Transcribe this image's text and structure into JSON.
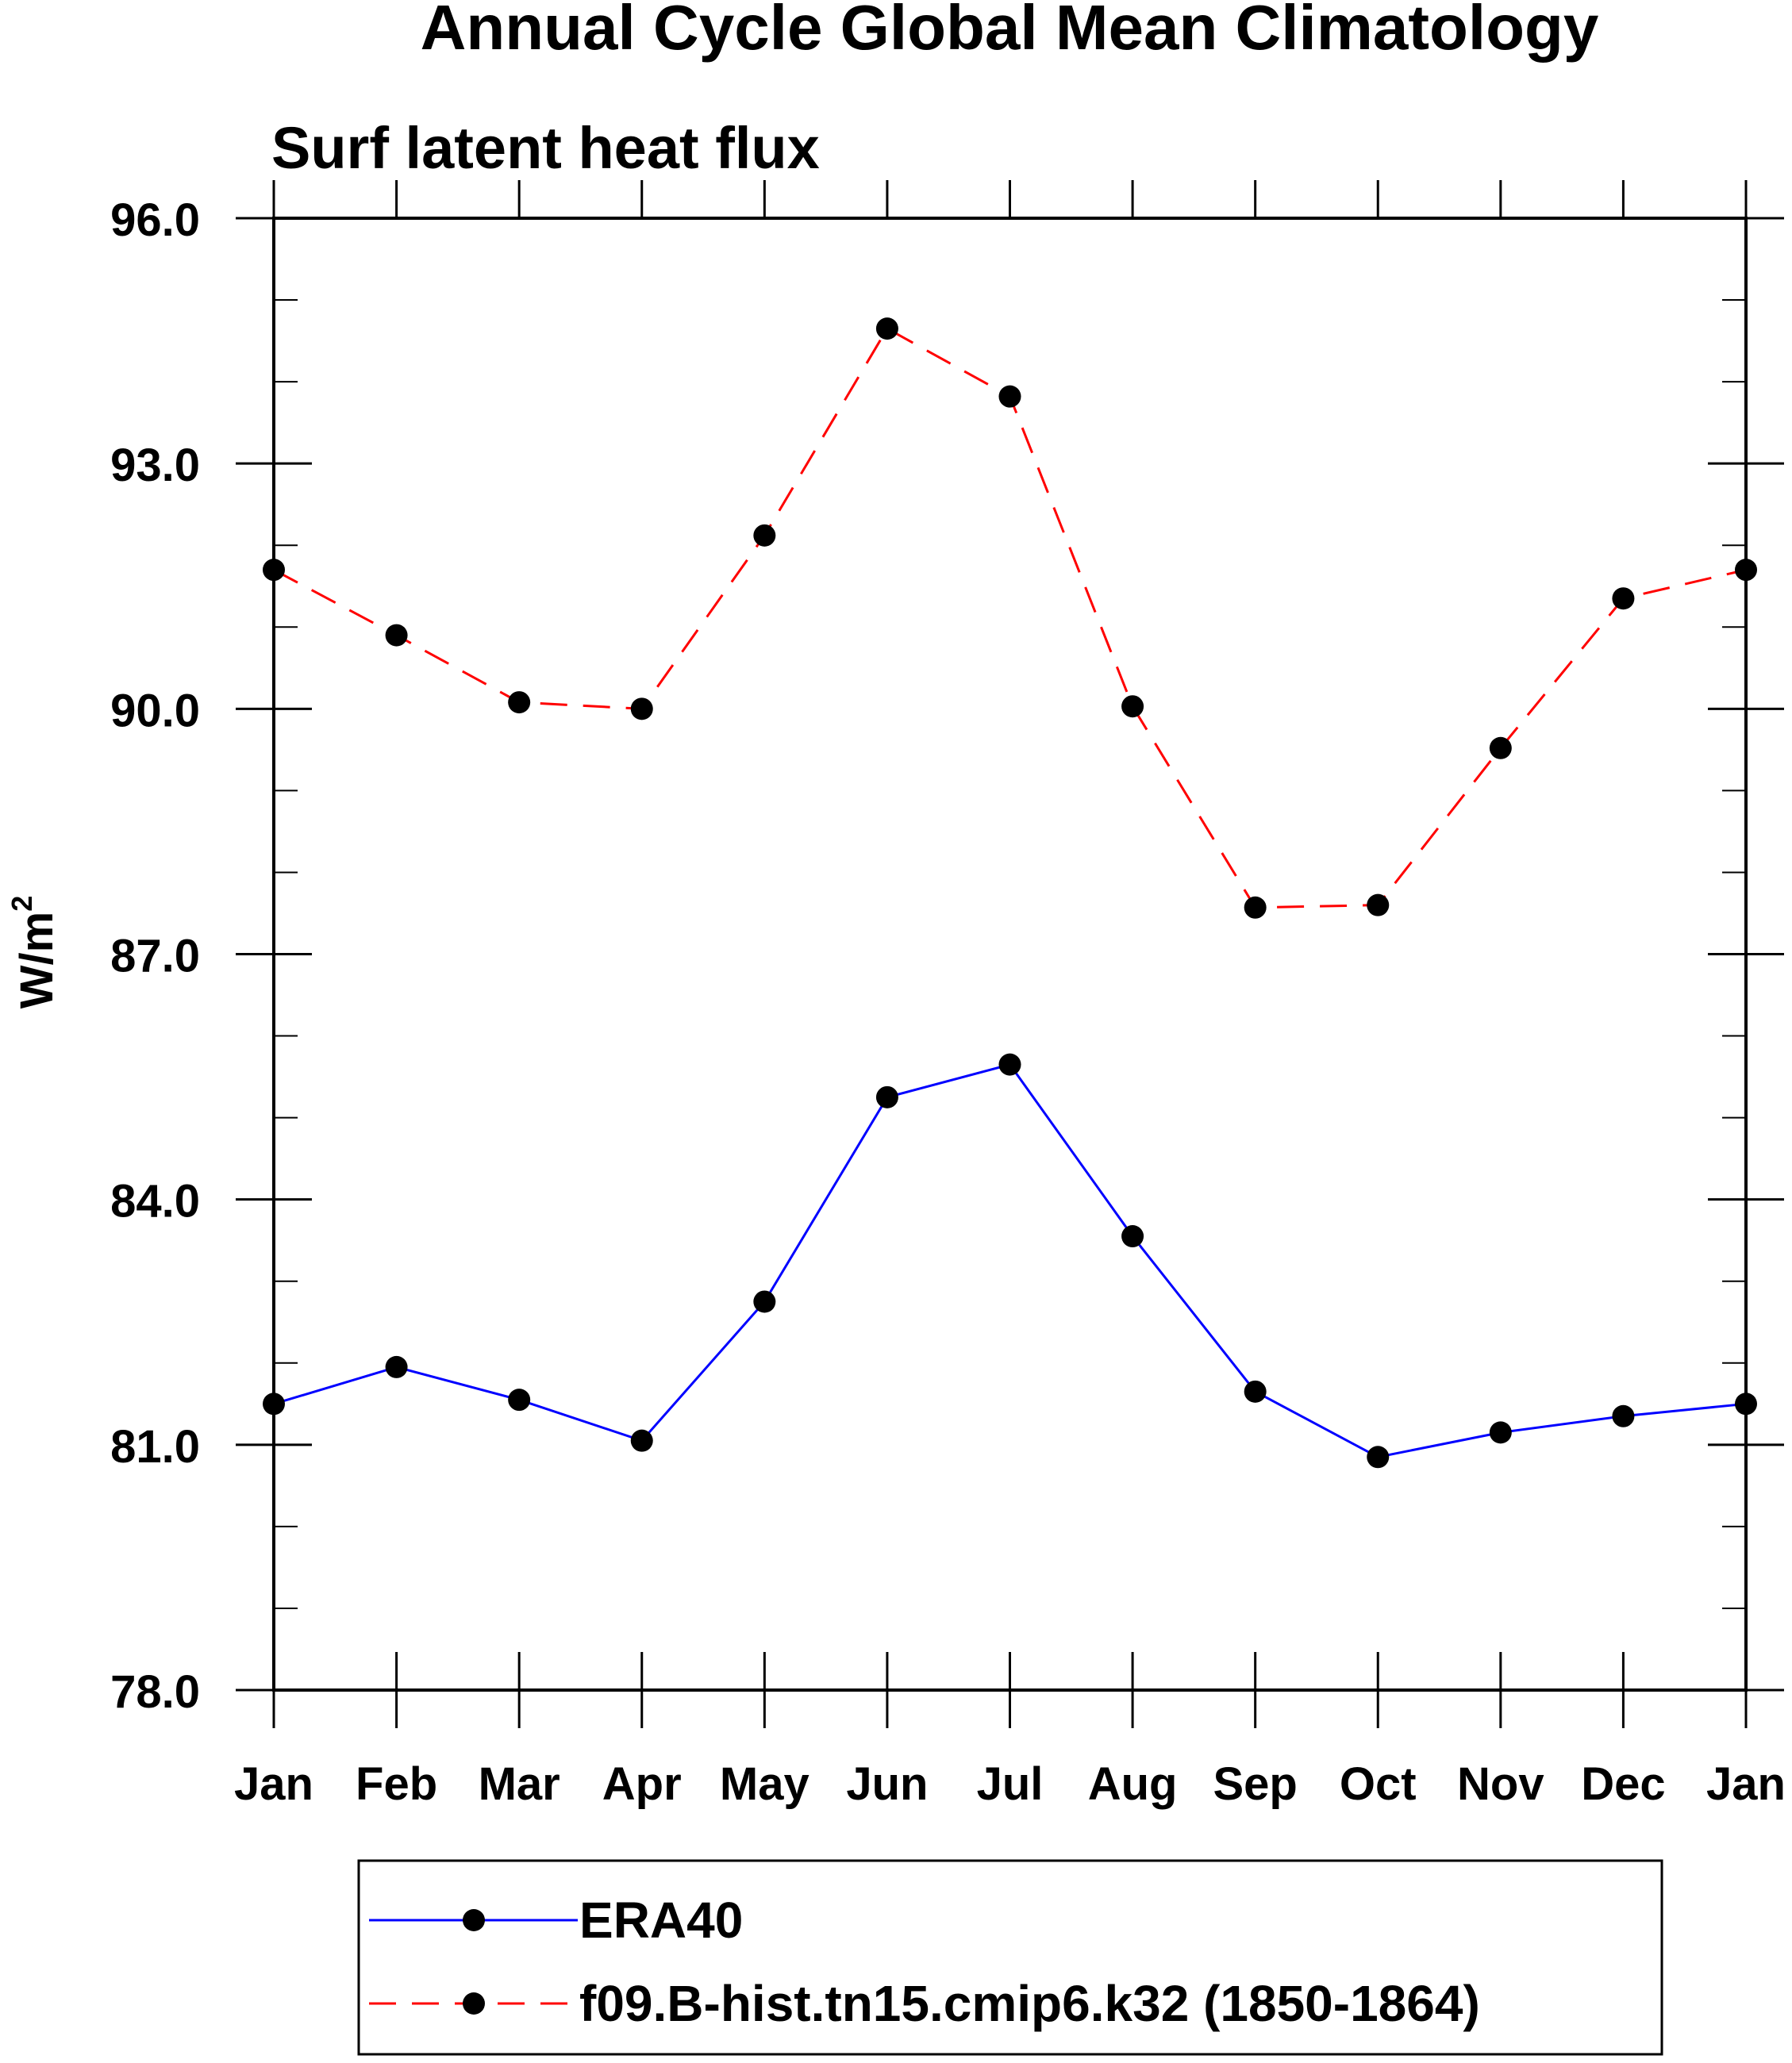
{
  "chart_data": {
    "type": "line",
    "title": "Annual Cycle Global Mean Climatology",
    "subtitle": "Surf latent heat flux",
    "ylabel": "W/m",
    "ylabel_superscript": "2",
    "xlabel": "",
    "categories": [
      "Jan",
      "Feb",
      "Mar",
      "Apr",
      "May",
      "Jun",
      "Jul",
      "Aug",
      "Sep",
      "Oct",
      "Nov",
      "Dec",
      "Jan"
    ],
    "ylim": [
      78.0,
      96.0
    ],
    "yticks": [
      "78.0",
      "81.0",
      "84.0",
      "87.0",
      "90.0",
      "93.0",
      "96.0"
    ],
    "grid": false,
    "legend_position": "bottom",
    "series": [
      {
        "name": "ERA40",
        "color": "#0000ff",
        "style": "solid",
        "marker": "filled-circle",
        "values": [
          81.5,
          81.95,
          81.55,
          81.05,
          82.75,
          85.25,
          85.65,
          83.55,
          81.65,
          80.85,
          81.15,
          81.35,
          81.5
        ]
      },
      {
        "name": "f09.B-hist.tn15.cmip6.k32 (1850-1864)",
        "color": "#ff0000",
        "style": "dashed",
        "marker": "filled-circle",
        "values": [
          91.7,
          90.9,
          90.08,
          90.0,
          92.12,
          94.65,
          93.82,
          90.03,
          87.57,
          87.6,
          89.52,
          91.35,
          91.7
        ]
      }
    ]
  }
}
